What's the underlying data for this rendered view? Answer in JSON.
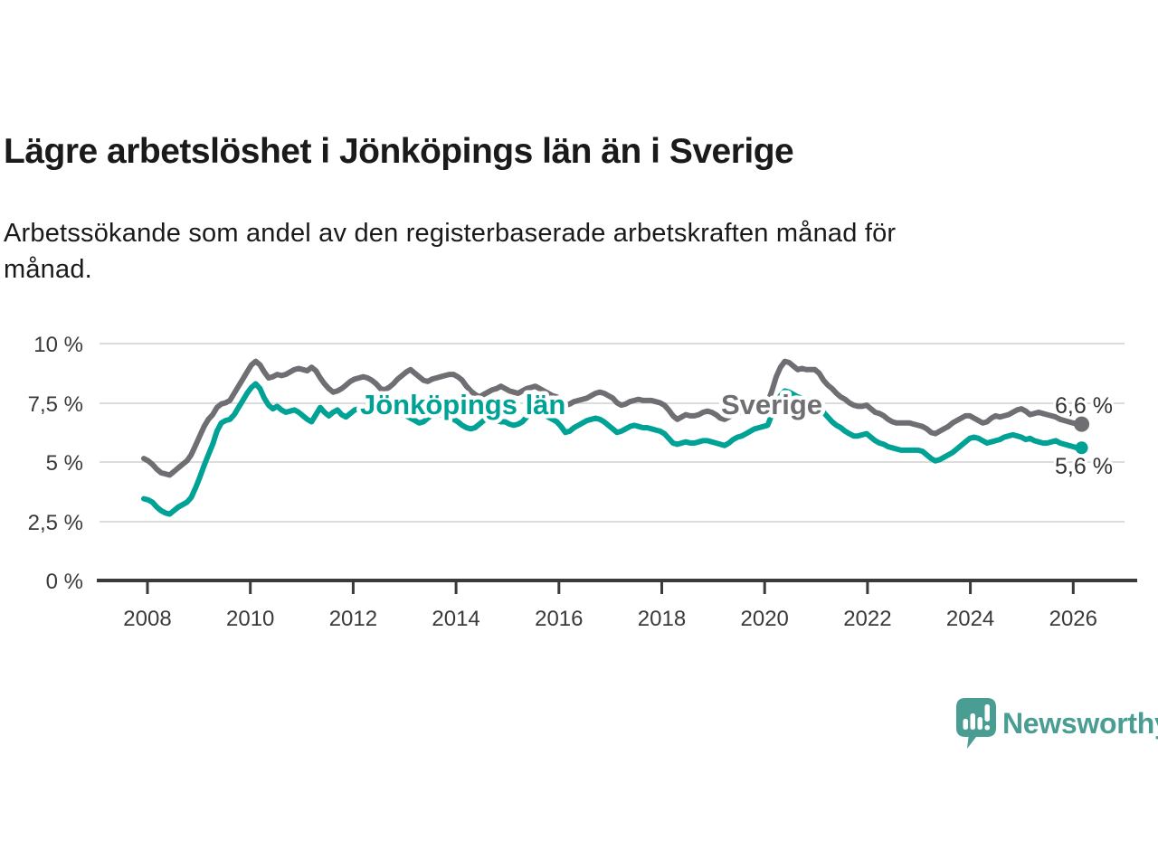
{
  "header": {
    "title": "Lägre arbetslöshet i Jönköpings län än i Sverige",
    "subtitle_lines": [
      "Arbetssökande som andel av den registerbaserade arbetskraften månad för",
      "månad."
    ]
  },
  "branding": {
    "wordmark": "Newsworthy",
    "logo_color": "#4a9d92",
    "logo_icon": "speech-bubble-bar-chart-exclamation"
  },
  "chart_data": {
    "type": "line",
    "unit": "%",
    "x_start": "2008-01",
    "x_end": "2026-03",
    "frequency": "monthly",
    "grid": "horizontal",
    "y_axis": {
      "min": 0,
      "max": 10
    },
    "y_tick_labels": [
      "10 %",
      "7,5 %",
      "5 %",
      "2,5 %",
      "0 %"
    ],
    "x_tick_labels": [
      "2008",
      "2010",
      "2012",
      "2014",
      "2016",
      "2018",
      "2020",
      "2022",
      "2024",
      "2026"
    ],
    "series": [
      {
        "id": "sverige",
        "name": "Sverige",
        "color": "#6e6e73",
        "end_label": "6,6 %",
        "last_value": 6.6,
        "values": [
          5.15,
          5.05,
          4.9,
          4.7,
          4.55,
          4.5,
          4.45,
          4.6,
          4.75,
          4.9,
          5.05,
          5.3,
          5.7,
          6.1,
          6.5,
          6.8,
          7.0,
          7.3,
          7.45,
          7.5,
          7.6,
          7.9,
          8.2,
          8.5,
          8.8,
          9.1,
          9.25,
          9.1,
          8.8,
          8.55,
          8.6,
          8.7,
          8.65,
          8.7,
          8.8,
          8.9,
          8.95,
          8.9,
          8.85,
          9.0,
          8.85,
          8.55,
          8.3,
          8.1,
          7.95,
          8.0,
          8.1,
          8.25,
          8.4,
          8.5,
          8.55,
          8.6,
          8.55,
          8.45,
          8.3,
          8.1,
          8.05,
          8.15,
          8.3,
          8.5,
          8.65,
          8.8,
          8.9,
          8.75,
          8.6,
          8.45,
          8.4,
          8.5,
          8.55,
          8.6,
          8.65,
          8.7,
          8.7,
          8.6,
          8.45,
          8.2,
          8.0,
          7.85,
          7.75,
          7.85,
          7.95,
          8.05,
          8.1,
          8.2,
          8.1,
          8.0,
          7.95,
          7.9,
          8.0,
          8.1,
          8.15,
          8.2,
          8.1,
          8.0,
          7.9,
          7.8,
          7.75,
          7.6,
          7.4,
          7.45,
          7.55,
          7.6,
          7.65,
          7.7,
          7.8,
          7.9,
          7.95,
          7.9,
          7.8,
          7.7,
          7.5,
          7.4,
          7.45,
          7.55,
          7.6,
          7.65,
          7.6,
          7.6,
          7.6,
          7.55,
          7.5,
          7.4,
          7.2,
          6.95,
          6.8,
          6.9,
          7.0,
          6.95,
          6.95,
          7.0,
          7.1,
          7.15,
          7.1,
          7.0,
          6.85,
          6.8,
          6.9,
          7.0,
          7.1,
          7.1,
          7.15,
          7.2,
          7.3,
          7.4,
          7.45,
          7.5,
          8.0,
          8.6,
          9.0,
          9.25,
          9.2,
          9.05,
          8.9,
          8.95,
          8.9,
          8.9,
          8.9,
          8.75,
          8.45,
          8.25,
          8.1,
          7.9,
          7.75,
          7.65,
          7.5,
          7.4,
          7.35,
          7.35,
          7.4,
          7.25,
          7.1,
          7.05,
          6.95,
          6.8,
          6.7,
          6.65,
          6.65,
          6.65,
          6.65,
          6.6,
          6.55,
          6.5,
          6.4,
          6.25,
          6.2,
          6.3,
          6.4,
          6.5,
          6.65,
          6.75,
          6.85,
          6.95,
          6.95,
          6.85,
          6.75,
          6.65,
          6.7,
          6.85,
          6.95,
          6.9,
          6.95,
          7.0,
          7.1,
          7.2,
          7.25,
          7.15,
          7.0,
          7.05,
          7.1,
          7.05,
          7.0,
          6.95,
          6.9,
          6.8,
          6.75,
          6.7,
          6.65,
          6.6,
          6.6
        ]
      },
      {
        "id": "jonkoping",
        "name": "Jönköpings län",
        "color": "#00a295",
        "end_label": "5,6 %",
        "last_value": 5.6,
        "values": [
          3.45,
          3.4,
          3.3,
          3.1,
          2.95,
          2.85,
          2.8,
          2.95,
          3.1,
          3.2,
          3.3,
          3.5,
          3.9,
          4.35,
          4.85,
          5.3,
          5.75,
          6.3,
          6.65,
          6.75,
          6.8,
          7.0,
          7.3,
          7.6,
          7.9,
          8.15,
          8.3,
          8.1,
          7.7,
          7.4,
          7.25,
          7.35,
          7.2,
          7.1,
          7.15,
          7.2,
          7.1,
          6.95,
          6.8,
          6.7,
          7.0,
          7.3,
          7.1,
          6.95,
          7.1,
          7.2,
          7.0,
          6.9,
          7.05,
          7.2,
          7.25,
          7.3,
          7.35,
          7.3,
          7.2,
          7.1,
          7.05,
          7.1,
          7.15,
          7.1,
          7.0,
          6.95,
          6.85,
          6.75,
          6.65,
          6.7,
          6.85,
          7.0,
          7.05,
          7.0,
          6.9,
          6.85,
          6.8,
          6.7,
          6.55,
          6.45,
          6.4,
          6.45,
          6.6,
          6.75,
          6.85,
          6.8,
          6.75,
          6.7,
          6.7,
          6.6,
          6.55,
          6.6,
          6.7,
          6.9,
          7.1,
          7.2,
          7.15,
          7.0,
          6.9,
          6.8,
          6.7,
          6.5,
          6.25,
          6.3,
          6.45,
          6.55,
          6.65,
          6.75,
          6.8,
          6.85,
          6.8,
          6.7,
          6.55,
          6.4,
          6.25,
          6.3,
          6.4,
          6.5,
          6.55,
          6.5,
          6.45,
          6.45,
          6.4,
          6.35,
          6.3,
          6.2,
          6.0,
          5.8,
          5.75,
          5.8,
          5.85,
          5.8,
          5.8,
          5.85,
          5.9,
          5.9,
          5.85,
          5.8,
          5.75,
          5.7,
          5.8,
          5.95,
          6.05,
          6.1,
          6.2,
          6.3,
          6.4,
          6.45,
          6.5,
          6.55,
          7.0,
          7.5,
          7.8,
          8.0,
          7.95,
          7.85,
          7.75,
          7.7,
          7.65,
          7.6,
          7.55,
          7.35,
          7.1,
          6.9,
          6.7,
          6.55,
          6.45,
          6.3,
          6.2,
          6.1,
          6.1,
          6.15,
          6.2,
          6.05,
          5.9,
          5.8,
          5.75,
          5.65,
          5.6,
          5.55,
          5.5,
          5.5,
          5.5,
          5.5,
          5.5,
          5.45,
          5.3,
          5.15,
          5.05,
          5.1,
          5.2,
          5.3,
          5.4,
          5.55,
          5.7,
          5.85,
          6.0,
          6.05,
          6.0,
          5.9,
          5.8,
          5.85,
          5.9,
          5.95,
          6.05,
          6.1,
          6.15,
          6.1,
          6.05,
          5.95,
          6.0,
          5.9,
          5.85,
          5.8,
          5.8,
          5.85,
          5.9,
          5.8,
          5.75,
          5.7,
          5.65,
          5.6,
          5.6
        ]
      }
    ]
  }
}
